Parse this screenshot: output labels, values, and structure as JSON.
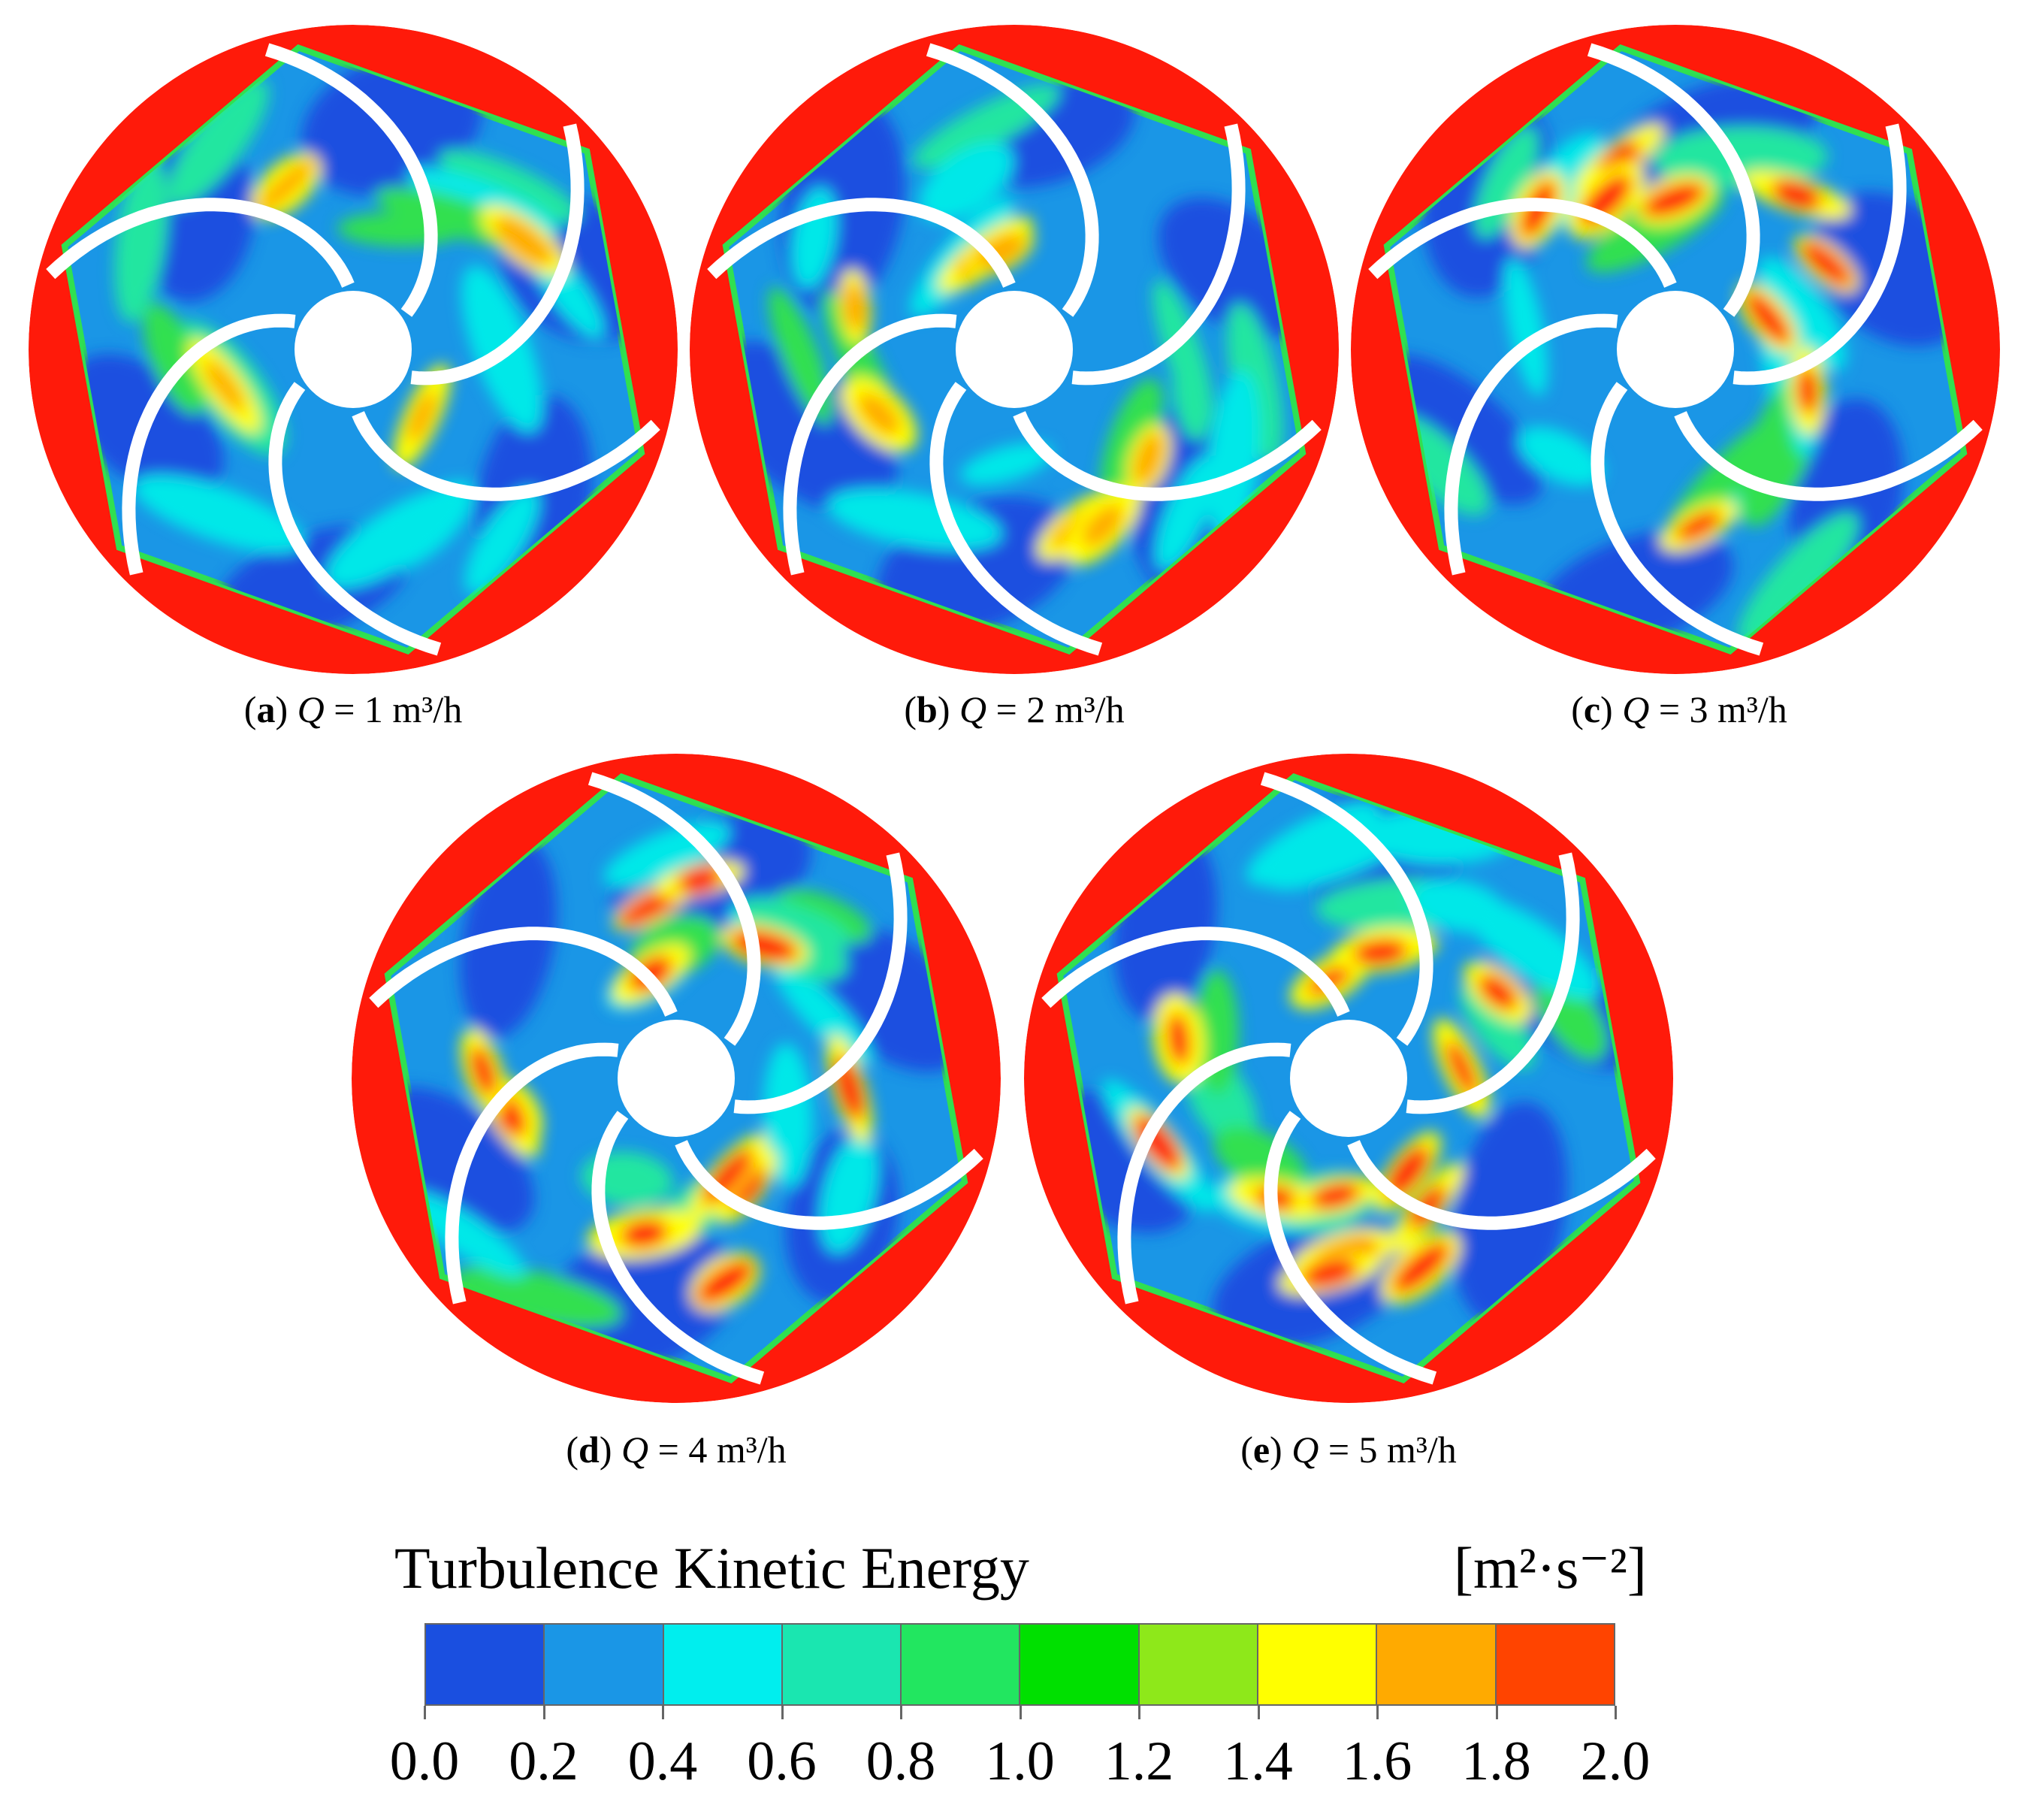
{
  "panels": [
    {
      "id": "a",
      "letter": "a",
      "q_symbol": "Q",
      "q_text": " = 1 m³/h"
    },
    {
      "id": "b",
      "letter": "b",
      "q_symbol": "Q",
      "q_text": " = 2 m³/h"
    },
    {
      "id": "c",
      "letter": "c",
      "q_symbol": "Q",
      "q_text": " = 3 m³/h"
    },
    {
      "id": "d",
      "letter": "d",
      "q_symbol": "Q",
      "q_text": " = 4 m³/h"
    },
    {
      "id": "e",
      "letter": "e",
      "q_symbol": "Q",
      "q_text": " = 5 m³/h"
    }
  ],
  "legend": {
    "title": "Turbulence Kinetic Energy",
    "unit": "[m²·s⁻²]",
    "tick_labels": [
      "0.0",
      "0.2",
      "0.4",
      "0.6",
      "0.8",
      "1.0",
      "1.2",
      "1.4",
      "1.6",
      "1.8",
      "2.0"
    ],
    "colors": [
      "#1a4fe0",
      "#1a96e6",
      "#00eeee",
      "#1ae6b0",
      "#22e660",
      "#00e000",
      "#8ee81a",
      "#ffff00",
      "#ffaa00",
      "#ff4400"
    ]
  },
  "palette": {
    "blue": "#1a4fe0",
    "light_blue": "#1a96e6",
    "cyan": "#00e8e8",
    "teal": "#20e6a0",
    "green": "#30e050",
    "yellow": "#ffff00",
    "orange": "#ffaa00",
    "red": "#ff1a0a",
    "blade": "#ffffff"
  }
}
